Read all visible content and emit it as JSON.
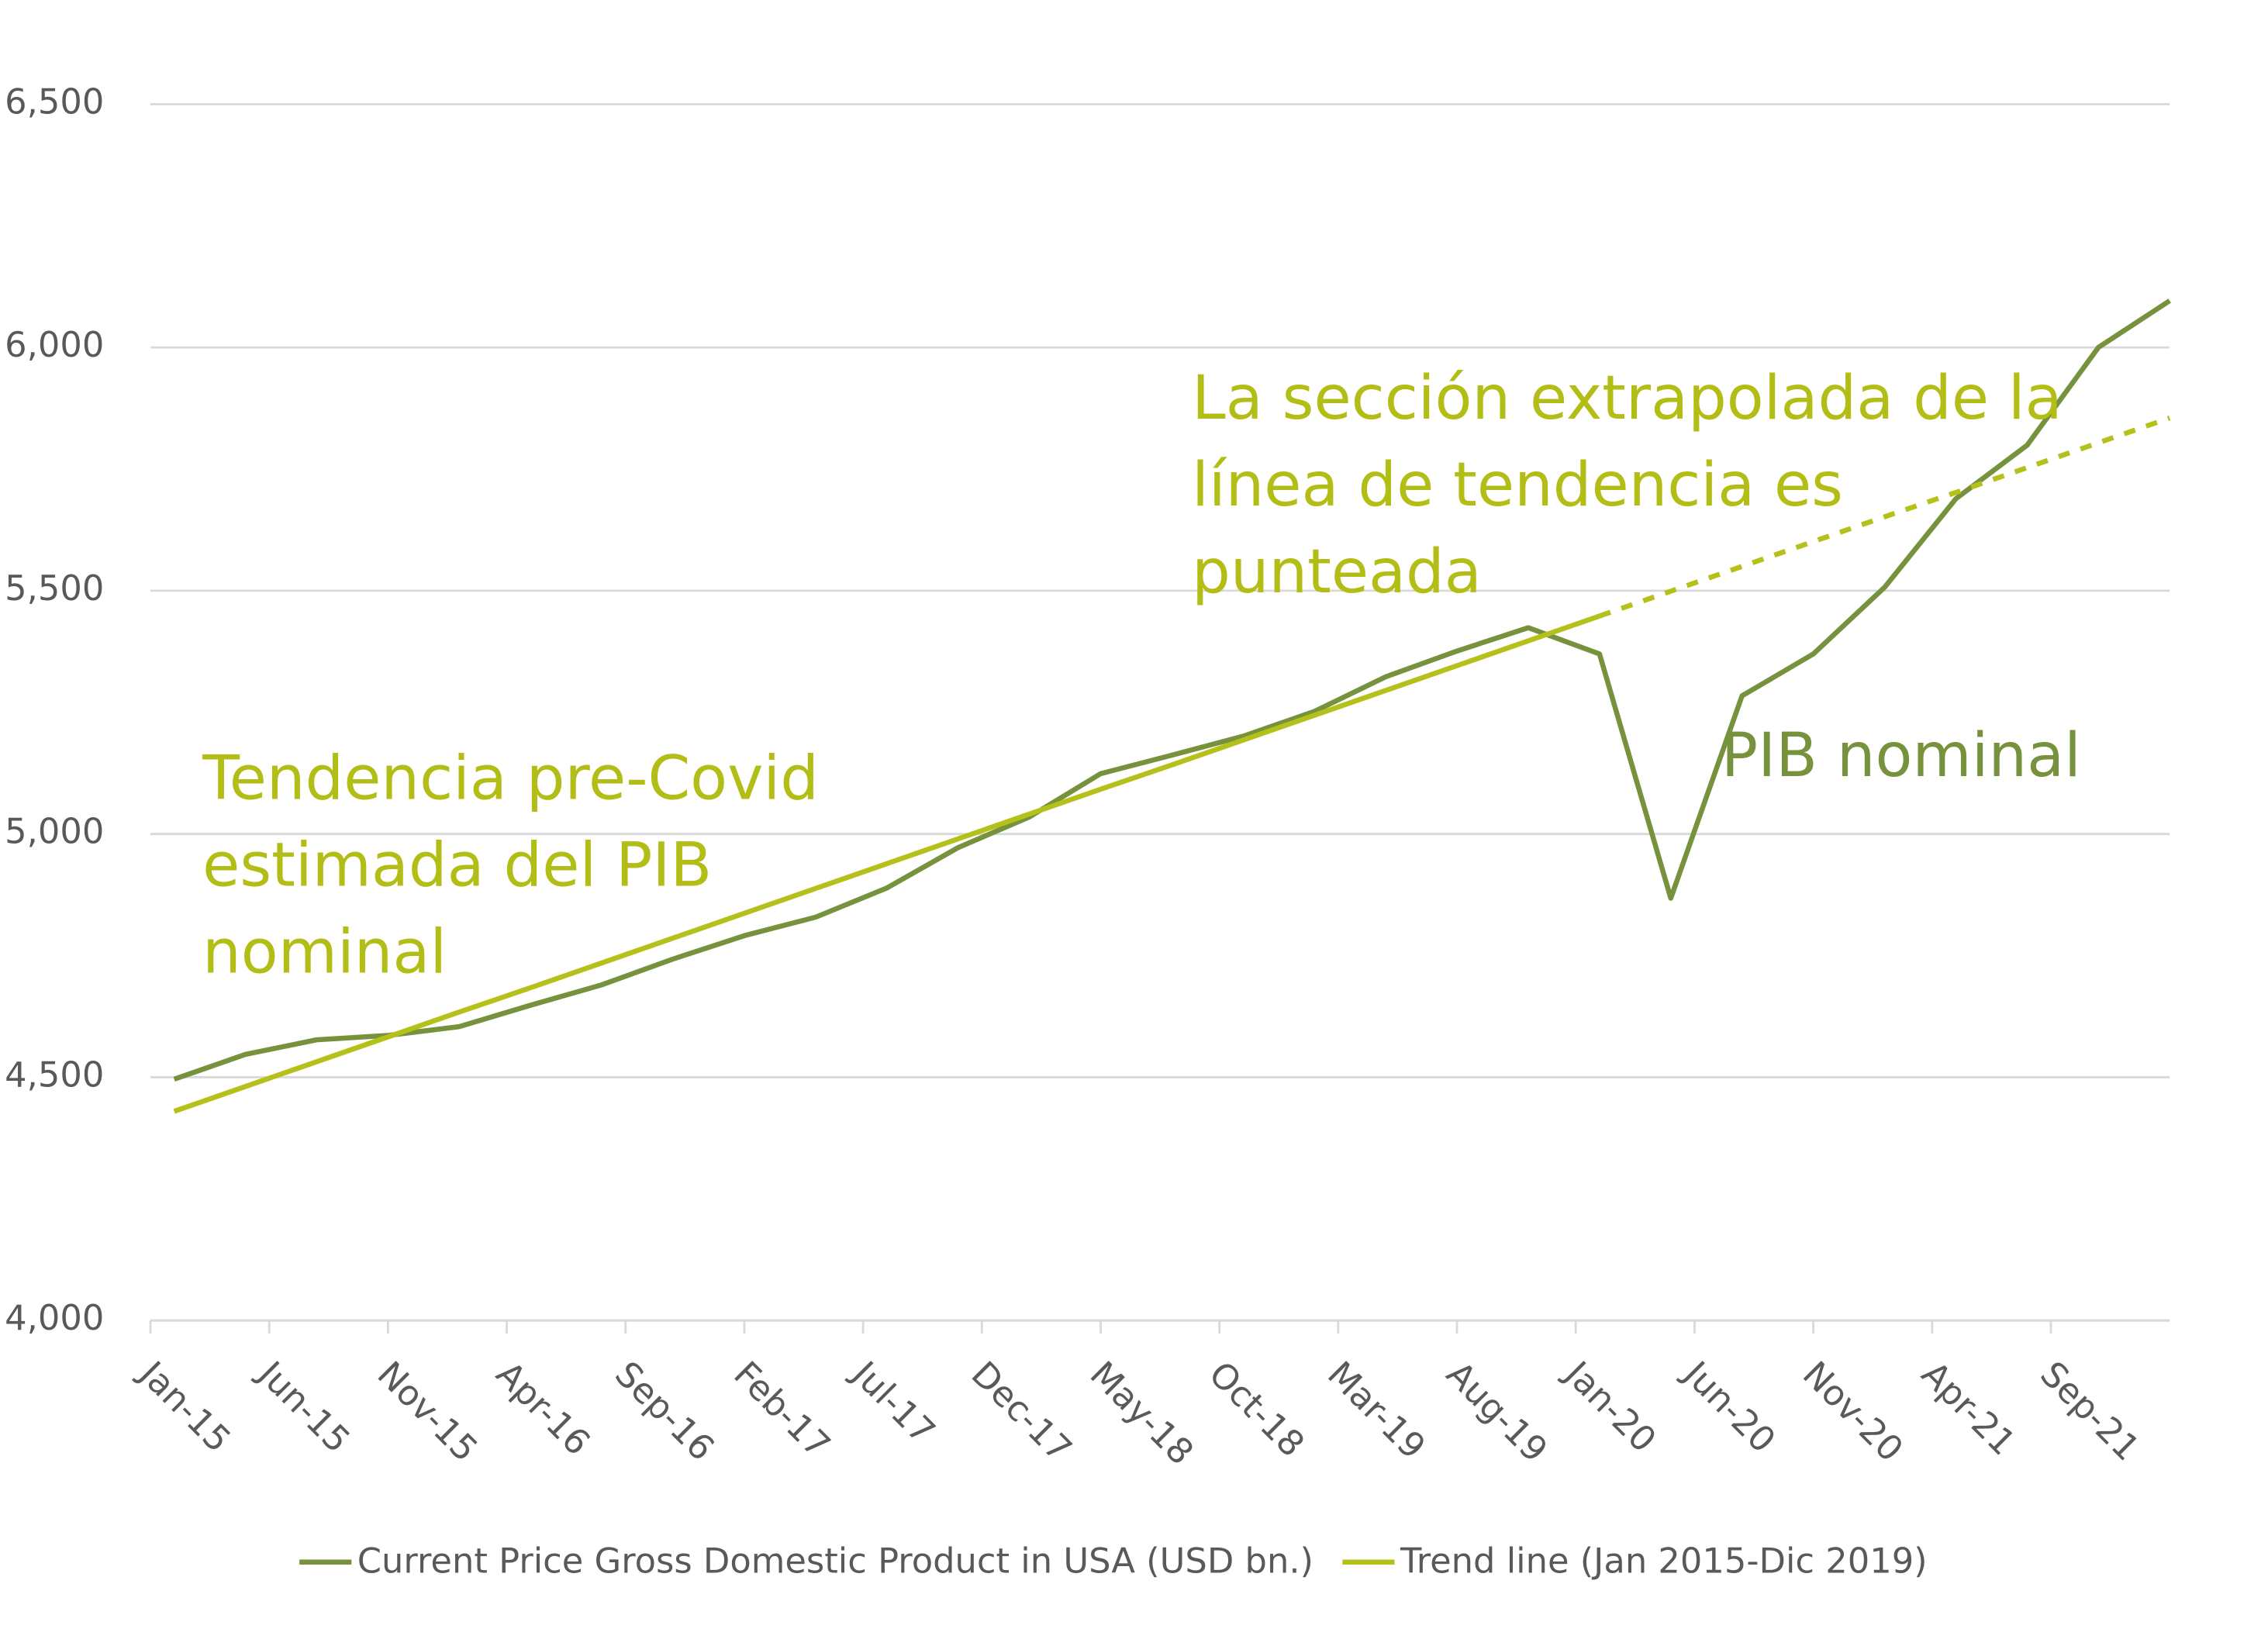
{
  "chart_data": {
    "type": "line",
    "x": [
      "2015-02",
      "2015-05",
      "2015-08",
      "2015-11",
      "2016-02",
      "2016-05",
      "2016-08",
      "2016-11",
      "2017-02",
      "2017-05",
      "2017-08",
      "2017-11",
      "2018-02",
      "2018-05",
      "2018-08",
      "2018-11",
      "2019-02",
      "2019-05",
      "2019-08",
      "2019-11",
      "2020-02",
      "2020-05",
      "2020-08",
      "2020-11",
      "2021-02",
      "2021-05",
      "2021-08",
      "2021-11",
      "2022-02"
    ],
    "series": [
      {
        "name": "Current Price Gross Domestic Product in USA (USD bn.)",
        "color": "#76923c",
        "values": [
          4496,
          4547,
          4577,
          4586,
          4604,
          4648,
          4690,
          4743,
          4791,
          4829,
          4889,
          4972,
          5035,
          5124,
          5162,
          5201,
          5252,
          5323,
          5376,
          5424,
          5370,
          4868,
          5284,
          5370,
          5507,
          5689,
          5799,
          6000,
          6096
        ]
      },
      {
        "name": "Trend line (Jan 2015-Dic 2019)",
        "color": "#b5c11a",
        "dashed_after": "2020-02",
        "values": [
          4430,
          4481,
          4532,
          4583,
          4634,
          4684,
          4735,
          4786,
          4837,
          4888,
          4939,
          4990,
          5041,
          5092,
          5142,
          5193,
          5244,
          5295,
          5346,
          5397,
          5448,
          5499,
          5550,
          5601,
          5652,
          5702,
          5753,
          5804,
          5855
        ]
      }
    ],
    "xlim": [
      "2015-01",
      "2022-02"
    ],
    "xticks": [
      {
        "value": "2015-01",
        "label": "Jan-15"
      },
      {
        "value": "2015-06",
        "label": "Jun-15"
      },
      {
        "value": "2015-11",
        "label": "Nov-15"
      },
      {
        "value": "2016-04",
        "label": "Apr-16"
      },
      {
        "value": "2016-09",
        "label": "Sep-16"
      },
      {
        "value": "2017-02",
        "label": "Feb-17"
      },
      {
        "value": "2017-07",
        "label": "Jul-17"
      },
      {
        "value": "2017-12",
        "label": "Dec-17"
      },
      {
        "value": "2018-05",
        "label": "May-18"
      },
      {
        "value": "2018-10",
        "label": "Oct-18"
      },
      {
        "value": "2019-03",
        "label": "Mar-19"
      },
      {
        "value": "2019-08",
        "label": "Aug-19"
      },
      {
        "value": "2020-01",
        "label": "Jan-20"
      },
      {
        "value": "2020-06",
        "label": "Jun-20"
      },
      {
        "value": "2020-11",
        "label": "Nov-20"
      },
      {
        "value": "2021-04",
        "label": "Apr-21"
      },
      {
        "value": "2021-09",
        "label": "Sep-21"
      }
    ],
    "ylim": [
      4000,
      6500
    ],
    "yticks": [
      {
        "value": 4000,
        "label": "4,000"
      },
      {
        "value": 4500,
        "label": "4,500"
      },
      {
        "value": 5000,
        "label": "5,000"
      },
      {
        "value": 5500,
        "label": "5,500"
      },
      {
        "value": 6000,
        "label": "6,000"
      },
      {
        "value": 6500,
        "label": "6,500"
      }
    ],
    "grid": true,
    "legend": "bottom",
    "annotations": [
      {
        "lines": [
          "Tendencia pre-Covid",
          "estimada del PIB",
          "nominal"
        ],
        "color": "#b2bd16"
      },
      {
        "lines": [
          "La sección extrapolada de la",
          "línea de tendencia es",
          "punteada"
        ],
        "color": "#b2bd16"
      },
      {
        "lines": [
          "PIB nominal"
        ],
        "color": "#76923c"
      }
    ]
  }
}
